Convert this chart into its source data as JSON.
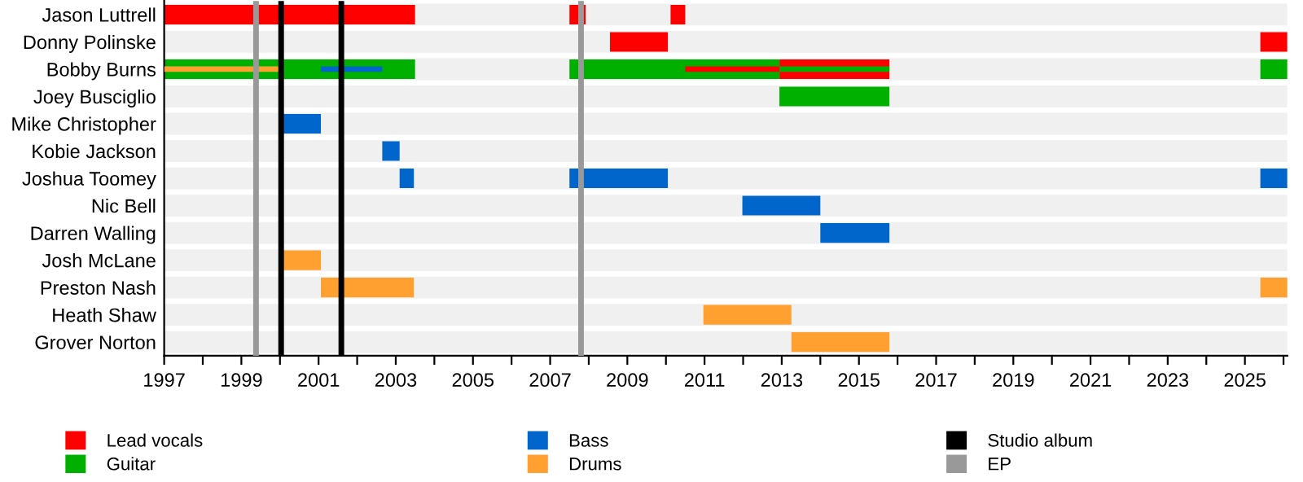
{
  "chart_data": {
    "type": "bar",
    "orientation": "horizontal",
    "categories": [
      "Jason Luttrell",
      "Donny Polinske",
      "Bobby Burns",
      "Joey Busciglio",
      "Mike Christopher",
      "Kobie Jackson",
      "Joshua Toomey",
      "Nic Bell",
      "Darren Walling",
      "Josh McLane",
      "Preston Nash",
      "Heath Shaw",
      "Grover Norton"
    ],
    "series": [
      {
        "name": "Lead vocals",
        "color": "#ff0000",
        "values": [
          6.5,
          1.5,
          2.85,
          null,
          null,
          null,
          null,
          null,
          null,
          null,
          null,
          null,
          null
        ],
        "base": [
          1997,
          2008.55,
          2012.94,
          null,
          null,
          null,
          null,
          null,
          null,
          null,
          null,
          null,
          null
        ]
      },
      {
        "color": "#ff0000",
        "values": [
          0.42,
          0.7,
          null,
          null,
          null,
          null,
          null,
          null,
          null,
          null,
          null,
          null,
          null
        ],
        "base": [
          2007.5,
          2025.4,
          null,
          null,
          null,
          null,
          null,
          null,
          null,
          null,
          null,
          null,
          null
        ]
      },
      {
        "color": "#ff0000",
        "values": [
          0.38,
          null,
          null,
          null,
          null,
          null,
          null,
          null,
          null,
          null,
          null,
          null,
          null
        ],
        "base": [
          2010.12,
          null,
          null,
          null,
          null,
          null,
          null,
          null,
          null,
          null,
          null,
          null,
          null
        ]
      },
      {
        "name": "Guitar",
        "color": "#00b000",
        "values": [
          null,
          null,
          6.5,
          2.85,
          null,
          null,
          null,
          null,
          null,
          null,
          null,
          null,
          null
        ],
        "base": [
          null,
          null,
          1997,
          2012.94,
          null,
          null,
          null,
          null,
          null,
          null,
          null,
          null,
          null
        ]
      },
      {
        "color": "#00b000",
        "values": [
          null,
          null,
          5.44,
          null,
          null,
          null,
          null,
          null,
          null,
          null,
          null,
          null,
          null
        ],
        "base": [
          null,
          null,
          2007.5,
          null,
          null,
          null,
          null,
          null,
          null,
          null,
          null,
          null,
          null
        ]
      },
      {
        "color": "#00b000",
        "values": [
          null,
          null,
          0.7,
          null,
          null,
          null,
          null,
          null,
          null,
          null,
          null,
          null,
          null
        ],
        "base": [
          null,
          null,
          2025.4,
          null,
          null,
          null,
          null,
          null,
          null,
          null,
          null,
          null,
          null
        ]
      },
      {
        "name": "Bass",
        "color": "#0066cc",
        "values": [
          null,
          null,
          null,
          null,
          1.06,
          0.45,
          0.37,
          2.02,
          1.79,
          null,
          null,
          null,
          null
        ],
        "base": [
          null,
          null,
          null,
          null,
          2000.0,
          2002.65,
          2003.1,
          2011.98,
          2014.0,
          null,
          null,
          null,
          null
        ]
      },
      {
        "color": "#0066cc",
        "values": [
          null,
          null,
          null,
          null,
          null,
          null,
          2.55,
          null,
          null,
          null,
          null,
          null,
          null
        ],
        "base": [
          null,
          null,
          null,
          null,
          null,
          null,
          2007.5,
          null,
          null,
          null,
          null,
          null,
          null
        ]
      },
      {
        "color": "#0066cc",
        "values": [
          null,
          null,
          null,
          null,
          null,
          null,
          0.7,
          null,
          null,
          null,
          null,
          null,
          null
        ],
        "base": [
          null,
          null,
          null,
          null,
          null,
          null,
          2025.4,
          null,
          null,
          null,
          null,
          null,
          null
        ]
      },
      {
        "name": "Drums",
        "color": "#ffa030",
        "values": [
          null,
          null,
          null,
          null,
          null,
          null,
          null,
          null,
          null,
          1.06,
          2.41,
          2.28,
          2.54
        ],
        "base": [
          null,
          null,
          null,
          null,
          null,
          null,
          null,
          null,
          null,
          2000.0,
          2001.06,
          2010.97,
          2013.25
        ]
      },
      {
        "color": "#ffa030",
        "values": [
          null,
          null,
          null,
          null,
          null,
          null,
          null,
          null,
          null,
          null,
          0.7,
          null,
          null
        ],
        "base": [
          null,
          null,
          null,
          null,
          null,
          null,
          null,
          null,
          null,
          null,
          2025.4,
          null,
          null
        ]
      },
      {
        "color": "#ffa030",
        "values": [
          null,
          null,
          3.0,
          null,
          null,
          null,
          null,
          null,
          null,
          null,
          null,
          null,
          null
        ],
        "base": [
          null,
          null,
          1997,
          null,
          null,
          null,
          null,
          null,
          null,
          null,
          null,
          null,
          null
        ]
      },
      {
        "color": "#0066cc",
        "values": [
          null,
          null,
          1.59,
          null,
          null,
          null,
          null,
          null,
          null,
          null,
          null,
          null,
          null
        ],
        "base": [
          null,
          null,
          2001.06,
          null,
          null,
          null,
          null,
          null,
          null,
          null,
          null,
          null,
          null
        ]
      },
      {
        "color": "#ff0000",
        "values": [
          null,
          null,
          2.44,
          null,
          null,
          null,
          null,
          null,
          null,
          null,
          null,
          null,
          null
        ],
        "base": [
          null,
          null,
          2010.5,
          null,
          null,
          null,
          null,
          null,
          null,
          null,
          null,
          null,
          null
        ]
      },
      {
        "color": "#00b000",
        "values": [
          null,
          null,
          2.85,
          null,
          null,
          null,
          null,
          null,
          null,
          null,
          null,
          null,
          null
        ],
        "base": [
          null,
          null,
          2012.94,
          null,
          null,
          null,
          null,
          null,
          null,
          null,
          null,
          null,
          null
        ]
      }
    ],
    "ref_lines": [
      {
        "axis": "x",
        "value": 2000.03,
        "label": "Studio album",
        "color": "#000000"
      },
      {
        "axis": "x",
        "value": 2001.59,
        "color": "#000000"
      },
      {
        "axis": "x",
        "value": 1999.38,
        "label": "EP",
        "color": "#999999"
      },
      {
        "axis": "x",
        "value": 2007.8,
        "color": "#999999"
      }
    ],
    "xlim": [
      1997,
      2026.1
    ],
    "xticks": [
      1997,
      {
        "value": 1998,
        "label": null
      },
      1999,
      {
        "value": 2000,
        "label": null
      },
      2001,
      {
        "value": 2002,
        "label": null
      },
      2003,
      {
        "value": 2004,
        "label": null
      },
      2005,
      {
        "value": 2006,
        "label": null
      },
      2007,
      {
        "value": 2008,
        "label": null
      },
      2009,
      {
        "value": 2010,
        "label": null
      },
      2011,
      {
        "value": 2012,
        "label": null
      },
      2013,
      {
        "value": 2014,
        "label": null
      },
      2015,
      {
        "value": 2016,
        "label": null
      },
      2017,
      {
        "value": 2018,
        "label": null
      },
      2019,
      {
        "value": 2020,
        "label": null
      },
      2021,
      {
        "value": 2022,
        "label": null
      },
      2023,
      {
        "value": 2024,
        "label": null
      },
      2025,
      {
        "value": 2026,
        "label": null
      }
    ],
    "legend": "bottom"
  }
}
